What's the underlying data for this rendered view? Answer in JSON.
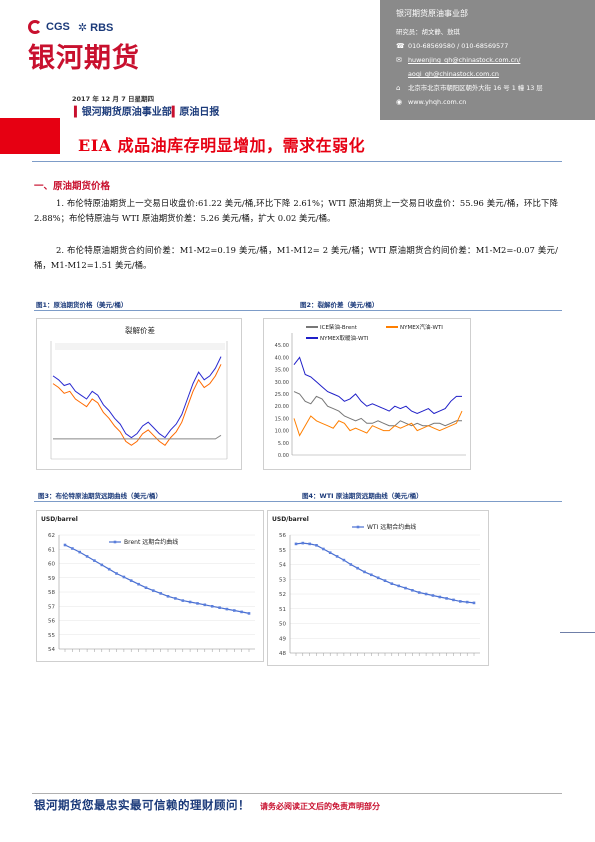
{
  "header": {
    "logo": {
      "cgs": "CGS",
      "rbs": "RBS",
      "name": "银河期货"
    },
    "contact": {
      "org": "银河期货原油事业部",
      "researcher": "研究员：胡文静、敖琪",
      "phone": "010-68569580 / 010-68569577",
      "email1": "huwenjing_qh@chinastock.com.cn/",
      "email2": "aoqi_qh@chinastock.com.cn",
      "address": "北京市北京市朝阳区朝外大街 16 号 1 幢 13 层",
      "website": "www.yhqh.com.cn",
      "icons": {
        "phone": "phone-icon",
        "email": "mail-icon",
        "address": "location-icon",
        "website": "web-icon"
      }
    },
    "date": "2017 年 12 月 7 日星期四",
    "dept": "银河期货原油事业部",
    "report": "原油日报",
    "title": "EIA 成品油库存明显增加，需求在弱化"
  },
  "section1": {
    "heading": "一、原油期货价格",
    "para1": "1. 布伦特原油期货上一交易日收盘价:61.22 美元/桶,环比下降 2.61%；WTI 原油期货上一交易日收盘价：55.96 美元/桶，环比下降 2.88%；布伦特原油与 WTI 原油期货价差：5.26 美元/桶，扩大 0.02 美元/桶。",
    "para2": "2. 布伦特原油期货合约间价差：M1-M2=0.19 美元/桶，M1-M12= 2 美元/桶；WTI 原油期货合约间价差：M1-M2=-0.07 美元/桶，M1-M12=1.51 美元/桶。"
  },
  "figures": {
    "fig1_label": "图1：原油期货价格（美元/桶）",
    "fig2_label": "图2：裂解价差（美元/桶）",
    "fig3_label": "图3：布伦特原油期货远期曲线（美元/桶）",
    "fig4_label": "图4：WTI 原油期货远期曲线（美元/桶）"
  },
  "chart_data": [
    {
      "type": "line",
      "title": "裂解价差",
      "note": "legend and axis text illegible; trend shapes approximated",
      "series": [
        {
          "values": [
            60,
            58,
            55,
            56,
            52,
            50,
            48,
            52,
            50,
            45,
            42,
            38,
            35,
            30,
            28,
            30,
            34,
            36,
            33,
            30,
            28,
            32,
            35,
            40,
            48,
            56,
            62,
            58,
            60,
            64,
            70
          ]
        },
        {
          "values": [
            56,
            54,
            51,
            52,
            48,
            46,
            44,
            48,
            46,
            41,
            38,
            34,
            31,
            26,
            24,
            26,
            30,
            32,
            29,
            26,
            24,
            28,
            31,
            36,
            44,
            52,
            58,
            54,
            56,
            60,
            66
          ]
        },
        {
          "values": [
            4,
            4,
            4,
            4,
            4,
            4,
            4,
            4,
            4,
            4,
            4,
            4,
            4,
            4,
            4,
            4,
            4,
            4,
            4,
            4,
            4,
            4,
            4,
            4,
            4,
            4,
            4,
            4,
            4,
            4,
            5
          ]
        }
      ],
      "color_1": "#2a2ad0",
      "color_2": "#ff6a00",
      "color_3": "#888888"
    },
    {
      "type": "line",
      "title": "",
      "ylim": [
        0,
        50
      ],
      "yticks": [
        "0.00",
        "5.00",
        "10.00",
        "15.00",
        "20.00",
        "25.00",
        "30.00",
        "35.00",
        "40.00",
        "45.00"
      ],
      "series": [
        {
          "name": "ICE柴油-Brent",
          "values": [
            26,
            25,
            22,
            21,
            24,
            23,
            20,
            19,
            18,
            16,
            15,
            14,
            15,
            13,
            13,
            14,
            13,
            12,
            12,
            14,
            13,
            12,
            13,
            12,
            12,
            13,
            13,
            12,
            13,
            14,
            14
          ]
        },
        {
          "name": "NYMEX汽油-WTI",
          "values": [
            15,
            8,
            12,
            16,
            14,
            13,
            12,
            11,
            14,
            13,
            10,
            11,
            10,
            9,
            12,
            11,
            10,
            10,
            12,
            11,
            12,
            13,
            10,
            11,
            12,
            11,
            10,
            11,
            12,
            13,
            18
          ]
        },
        {
          "name": "NYMEX取暖油-WTI",
          "values": [
            37,
            40,
            33,
            32,
            30,
            28,
            26,
            25,
            24,
            22,
            23,
            25,
            22,
            20,
            21,
            20,
            19,
            18,
            20,
            19,
            20,
            18,
            17,
            18,
            19,
            17,
            18,
            19,
            22,
            24,
            24
          ]
        }
      ]
    },
    {
      "type": "line",
      "title": "Brent 远期合约曲线",
      "ylabel": "USD/barrel",
      "ylim": [
        54,
        62
      ],
      "yticks": [
        54,
        55,
        56,
        57,
        58,
        59,
        60,
        61,
        62
      ],
      "series": [
        {
          "name": "Brent 远期合约曲线",
          "values": [
            61.3,
            61.05,
            60.8,
            60.5,
            60.2,
            59.9,
            59.6,
            59.3,
            59.05,
            58.8,
            58.55,
            58.3,
            58.1,
            57.9,
            57.7,
            57.55,
            57.4,
            57.3,
            57.2,
            57.1,
            57.0,
            56.9,
            56.8,
            56.7,
            56.6,
            56.5
          ]
        }
      ]
    },
    {
      "type": "line",
      "title": "WTI 远期合约曲线",
      "ylabel": "USD/barrel",
      "ylim": [
        48,
        56
      ],
      "yticks": [
        48,
        49,
        50,
        51,
        52,
        53,
        54,
        55,
        56
      ],
      "series": [
        {
          "name": "WTI 远期合约曲线",
          "values": [
            55.4,
            55.45,
            55.4,
            55.3,
            55.05,
            54.8,
            54.55,
            54.3,
            54.0,
            53.75,
            53.5,
            53.3,
            53.1,
            52.9,
            52.7,
            52.55,
            52.4,
            52.25,
            52.1,
            52.0,
            51.9,
            51.8,
            51.7,
            51.6,
            51.5,
            51.45,
            51.4
          ]
        }
      ]
    }
  ],
  "footer": {
    "slogan": "银河期货您最忠实最可信赖的理财顾问！",
    "disclaimer": "请务必阅读正文后的免责声明部分"
  }
}
